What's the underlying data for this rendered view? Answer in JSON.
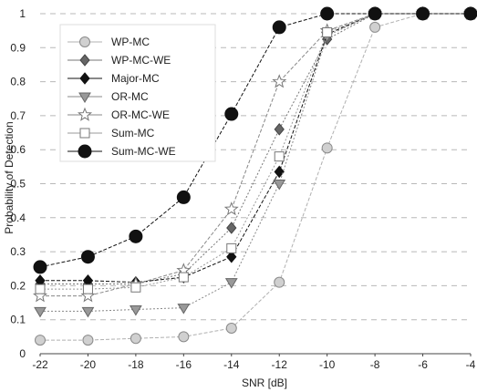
{
  "chart_data": {
    "type": "line",
    "xlabel": "SNR [dB]",
    "ylabel": "Probability of Detection",
    "xlim": [
      -22,
      -4
    ],
    "ylim": [
      0,
      1
    ],
    "xticks": [
      -22,
      -20,
      -18,
      -16,
      -14,
      -12,
      -10,
      -8,
      -6,
      -4
    ],
    "yticks": [
      0,
      0.1,
      0.2,
      0.3,
      0.4,
      0.5,
      0.6,
      0.7,
      0.8,
      0.9,
      1
    ],
    "grid": true,
    "legend_position": "top-left",
    "series": [
      {
        "name": "WP-MC",
        "marker": "circle-light",
        "color": "#b0b0b0",
        "x": [
          -22,
          -20,
          -18,
          -16,
          -14,
          -12,
          -10,
          -8,
          -6,
          -4
        ],
        "y": [
          0.04,
          0.04,
          0.045,
          0.05,
          0.075,
          0.21,
          0.605,
          0.96,
          1,
          1
        ]
      },
      {
        "name": "WP-MC-WE",
        "marker": "diamond-gray",
        "color": "#777777",
        "x": [
          -22,
          -20,
          -18,
          -16,
          -14,
          -12,
          -10,
          -8,
          -6,
          -4
        ],
        "y": [
          0.205,
          0.205,
          0.205,
          0.235,
          0.37,
          0.66,
          0.925,
          1,
          1,
          1
        ]
      },
      {
        "name": "Major-MC",
        "marker": "diamond-black",
        "color": "#111111",
        "x": [
          -22,
          -20,
          -18,
          -16,
          -14,
          -12,
          -10,
          -8,
          -6,
          -4
        ],
        "y": [
          0.215,
          0.215,
          0.21,
          0.225,
          0.285,
          0.535,
          0.94,
          1,
          1,
          1
        ]
      },
      {
        "name": "OR-MC",
        "marker": "triangle-down",
        "color": "#888888",
        "x": [
          -22,
          -20,
          -18,
          -16,
          -14,
          -12,
          -10,
          -8,
          -6,
          -4
        ],
        "y": [
          0.125,
          0.125,
          0.13,
          0.135,
          0.21,
          0.5,
          0.935,
          1,
          1,
          1
        ]
      },
      {
        "name": "OR-MC-WE",
        "marker": "star-open",
        "color": "#888888",
        "x": [
          -22,
          -20,
          -18,
          -16,
          -14,
          -12,
          -10,
          -8,
          -6,
          -4
        ],
        "y": [
          0.17,
          0.17,
          0.205,
          0.245,
          0.425,
          0.8,
          0.95,
          1,
          1,
          1
        ]
      },
      {
        "name": "Sum-MC",
        "marker": "square-open",
        "color": "#999999",
        "x": [
          -22,
          -20,
          -18,
          -16,
          -14,
          -12,
          -10,
          -8,
          -6,
          -4
        ],
        "y": [
          0.19,
          0.19,
          0.195,
          0.225,
          0.31,
          0.58,
          0.945,
          1,
          1,
          1
        ]
      },
      {
        "name": "Sum-MC-WE",
        "marker": "circle-black",
        "color": "#111111",
        "x": [
          -22,
          -20,
          -18,
          -16,
          -14,
          -12,
          -10,
          -8,
          -6,
          -4
        ],
        "y": [
          0.255,
          0.285,
          0.345,
          0.46,
          0.705,
          0.96,
          1,
          1,
          1,
          1
        ]
      }
    ]
  }
}
